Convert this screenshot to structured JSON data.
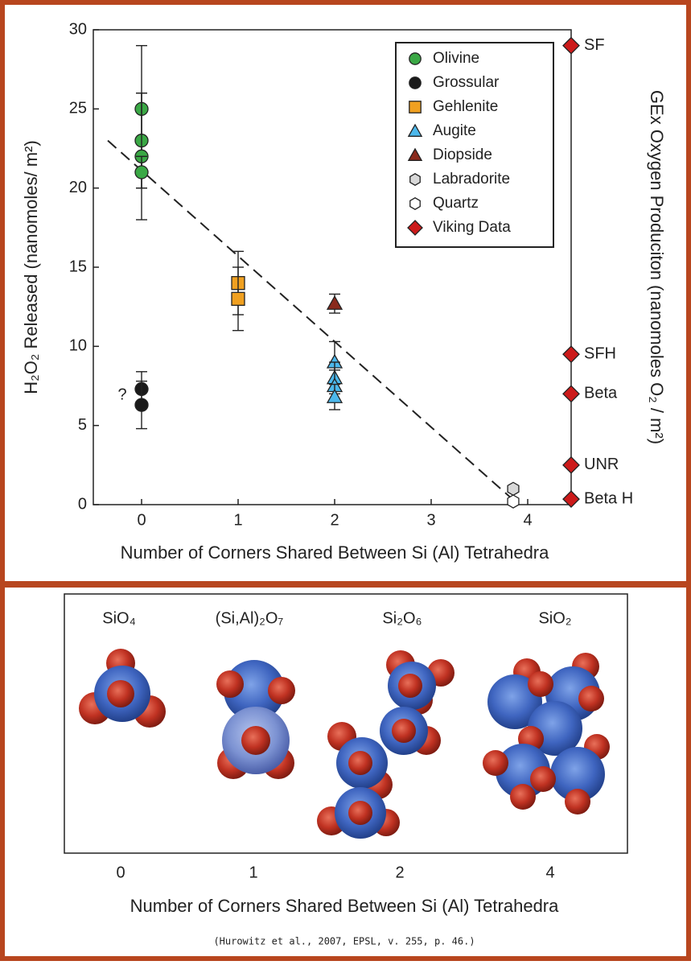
{
  "chart_data": {
    "type": "scatter",
    "y_label": "H₂O₂ Released (nanomoles/ m²)",
    "y2_label": "GEx Oxygen Produciton (nanomoles O₂ / m²)",
    "x_label": "Number of Corners Shared Between Si (Al) Tetrahedra",
    "xlim": [
      -0.5,
      4.45
    ],
    "xticks": [
      0,
      1,
      2,
      3,
      4
    ],
    "ylim": [
      0,
      30
    ],
    "yticks": [
      0,
      5,
      10,
      15,
      20,
      25,
      30
    ],
    "y2lim": [
      0,
      30
    ],
    "legend_position": "upper right",
    "series": [
      {
        "name": "Olivine",
        "color": "#3aa845",
        "marker": "circle",
        "x": [
          0,
          0,
          0,
          0
        ],
        "values": [
          25,
          23,
          22,
          21
        ],
        "errors": [
          4,
          3,
          4,
          1
        ]
      },
      {
        "name": "Grossular",
        "color": "#1a1a1a",
        "marker": "circle",
        "x": [
          0,
          0
        ],
        "values": [
          7.3,
          6.3
        ],
        "errors": [
          1.1,
          1.5
        ]
      },
      {
        "name": "Gehlenite",
        "color": "#f0a020",
        "marker": "square",
        "x": [
          1,
          1
        ],
        "values": [
          14,
          13
        ],
        "errors": [
          2,
          2
        ]
      },
      {
        "name": "Augite",
        "color": "#4cb8ec",
        "marker": "triangle",
        "x": [
          2,
          2,
          2,
          2
        ],
        "values": [
          9,
          8,
          7.5,
          6.8
        ],
        "errors": [
          1.3,
          1,
          1,
          0.8
        ]
      },
      {
        "name": "Diopside",
        "color": "#8a2a1c",
        "marker": "triangle",
        "x": [
          2
        ],
        "values": [
          12.7
        ],
        "errors": [
          0.6
        ]
      },
      {
        "name": "Labradorite",
        "color": "#d8d8d8",
        "marker": "hexagon",
        "x": [
          3.85
        ],
        "values": [
          1.0
        ]
      },
      {
        "name": "Quartz",
        "color": "#ffffff",
        "marker": "hexagon",
        "x": [
          3.85
        ],
        "values": [
          0.2
        ]
      },
      {
        "name": "Viking Data",
        "color": "#cc1a1a",
        "marker": "diamond",
        "axis": "y2",
        "values": [
          29,
          9.5,
          7.0,
          2.5,
          0.35
        ],
        "point_labels": [
          "SF",
          "SFH",
          "Beta",
          "UNR",
          "Beta H"
        ]
      }
    ],
    "trend_line": {
      "x": [
        -0.35,
        3.85
      ],
      "values": [
        23,
        0.3
      ]
    },
    "annotations": [
      {
        "text": "?",
        "x": -0.2,
        "y": 6.9
      }
    ]
  },
  "diagram": {
    "formulas": [
      "SiO₄",
      "(Si,Al)₂O₇",
      "Si₂O₆",
      "SiO₂"
    ],
    "ticks": [
      "0",
      "1",
      "2",
      "4"
    ],
    "x_label": "Number of Corners Shared Between Si (Al) Tetrahedra",
    "citation": "(Hurowitz et al., 2007, EPSL, v. 255, p. 46.)"
  }
}
